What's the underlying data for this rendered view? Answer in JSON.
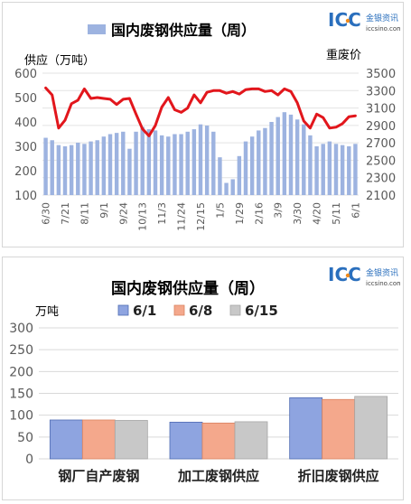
{
  "logo": {
    "letters": "ICC",
    "brand_cn": "金银资讯",
    "site": "iccsino.com"
  },
  "colors": {
    "bar_weekly": "#9db3e0",
    "line_price": "#e2161c",
    "series_6_1": "#8ea4e0",
    "series_6_8": "#f4a88c",
    "series_6_15": "#c8c8c8",
    "logo_blue": "#2a6fbd",
    "logo_orange": "#f08a1b",
    "axis_text": "#595959"
  },
  "chart_data": [
    {
      "type": "bar",
      "title": "国内废钢供应量（周）",
      "legend": [
        "国内废钢供应量（周）"
      ],
      "legend_position": "top",
      "ylabel_left": "供应（万吨）",
      "ylabel_right": "重废价",
      "ylim_left": [
        100,
        600
      ],
      "yticks_left": [
        100,
        200,
        300,
        400,
        500,
        600
      ],
      "ylim_right": [
        2100,
        3500
      ],
      "yticks_right": [
        2100,
        2300,
        2500,
        2700,
        2900,
        3100,
        3300,
        3500
      ],
      "xtick_labels": [
        "6/30",
        "7/21",
        "8/11",
        "9/1",
        "9/24",
        "10/13",
        "11/3",
        "11/24",
        "12/15",
        "1/5",
        "1/29",
        "2/16",
        "3/9",
        "3/30",
        "4/20",
        "5/11",
        "6/1"
      ],
      "grid": true,
      "series": [
        {
          "name": "国内废钢供应量（周）",
          "type": "bar",
          "axis": "left",
          "values": [
            335,
            325,
            305,
            300,
            305,
            315,
            310,
            320,
            325,
            340,
            350,
            355,
            360,
            290,
            360,
            380,
            370,
            365,
            345,
            340,
            350,
            350,
            360,
            370,
            390,
            385,
            360,
            255,
            150,
            165,
            260,
            320,
            340,
            365,
            375,
            400,
            420,
            440,
            430,
            410,
            390,
            345,
            300,
            310,
            320,
            310,
            305,
            300,
            310
          ]
        },
        {
          "type": "line",
          "axis": "right",
          "values": [
            3330,
            3250,
            2870,
            2960,
            3150,
            3190,
            3320,
            3210,
            3220,
            3210,
            3200,
            3140,
            3200,
            3210,
            3030,
            2860,
            2780,
            2900,
            3110,
            3220,
            3080,
            3050,
            3100,
            3250,
            3160,
            3280,
            3300,
            3300,
            3270,
            3290,
            3260,
            3310,
            3320,
            3320,
            3290,
            3300,
            3250,
            3320,
            3290,
            3160,
            2950,
            2870,
            3030,
            2990,
            2870,
            2880,
            2920,
            3000,
            3010
          ]
        }
      ]
    },
    {
      "type": "bar",
      "title": "国内废钢供应量（周）",
      "ylabel": "万吨",
      "ylim": [
        0,
        300
      ],
      "yticks": [
        0,
        50,
        100,
        150,
        200,
        250,
        300
      ],
      "categories": [
        "钢厂自产废钢",
        "加工废钢供应",
        "折旧废钢供应"
      ],
      "legend_position": "top",
      "grid": true,
      "series": [
        {
          "name": "6/1",
          "values": [
            89,
            84,
            140
          ]
        },
        {
          "name": "6/8",
          "values": [
            89,
            82,
            136
          ]
        },
        {
          "name": "6/15",
          "values": [
            88,
            85,
            143
          ]
        }
      ]
    }
  ]
}
